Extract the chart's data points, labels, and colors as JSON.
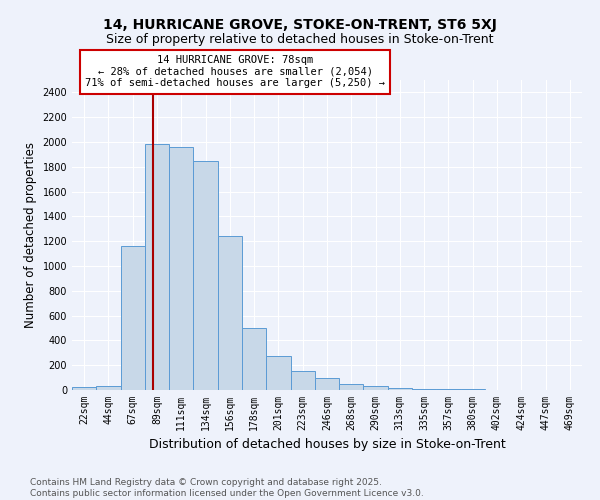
{
  "title": "14, HURRICANE GROVE, STOKE-ON-TRENT, ST6 5XJ",
  "subtitle": "Size of property relative to detached houses in Stoke-on-Trent",
  "xlabel": "Distribution of detached houses by size in Stoke-on-Trent",
  "ylabel": "Number of detached properties",
  "categories": [
    "22sqm",
    "44sqm",
    "67sqm",
    "89sqm",
    "111sqm",
    "134sqm",
    "156sqm",
    "178sqm",
    "201sqm",
    "223sqm",
    "246sqm",
    "268sqm",
    "290sqm",
    "313sqm",
    "335sqm",
    "357sqm",
    "380sqm",
    "402sqm",
    "424sqm",
    "447sqm",
    "469sqm"
  ],
  "values": [
    25,
    30,
    1160,
    1980,
    1960,
    1850,
    1240,
    500,
    275,
    155,
    100,
    50,
    35,
    20,
    10,
    8,
    5,
    3,
    2,
    2,
    1
  ],
  "bar_color": "#c8d8e8",
  "bar_edge_color": "#5b9bd5",
  "marker_color": "#aa0000",
  "annotation_text": "14 HURRICANE GROVE: 78sqm\n← 28% of detached houses are smaller (2,054)\n71% of semi-detached houses are larger (5,250) →",
  "annotation_box_color": "#ffffff",
  "annotation_box_edge": "#cc0000",
  "ylim": [
    0,
    2500
  ],
  "yticks": [
    0,
    200,
    400,
    600,
    800,
    1000,
    1200,
    1400,
    1600,
    1800,
    2000,
    2200,
    2400
  ],
  "background_color": "#eef2fb",
  "grid_color": "#ffffff",
  "footer_line1": "Contains HM Land Registry data © Crown copyright and database right 2025.",
  "footer_line2": "Contains public sector information licensed under the Open Government Licence v3.0.",
  "title_fontsize": 10,
  "subtitle_fontsize": 9,
  "axis_label_fontsize": 8.5,
  "tick_fontsize": 7,
  "annotation_fontsize": 7.5,
  "footer_fontsize": 6.5
}
